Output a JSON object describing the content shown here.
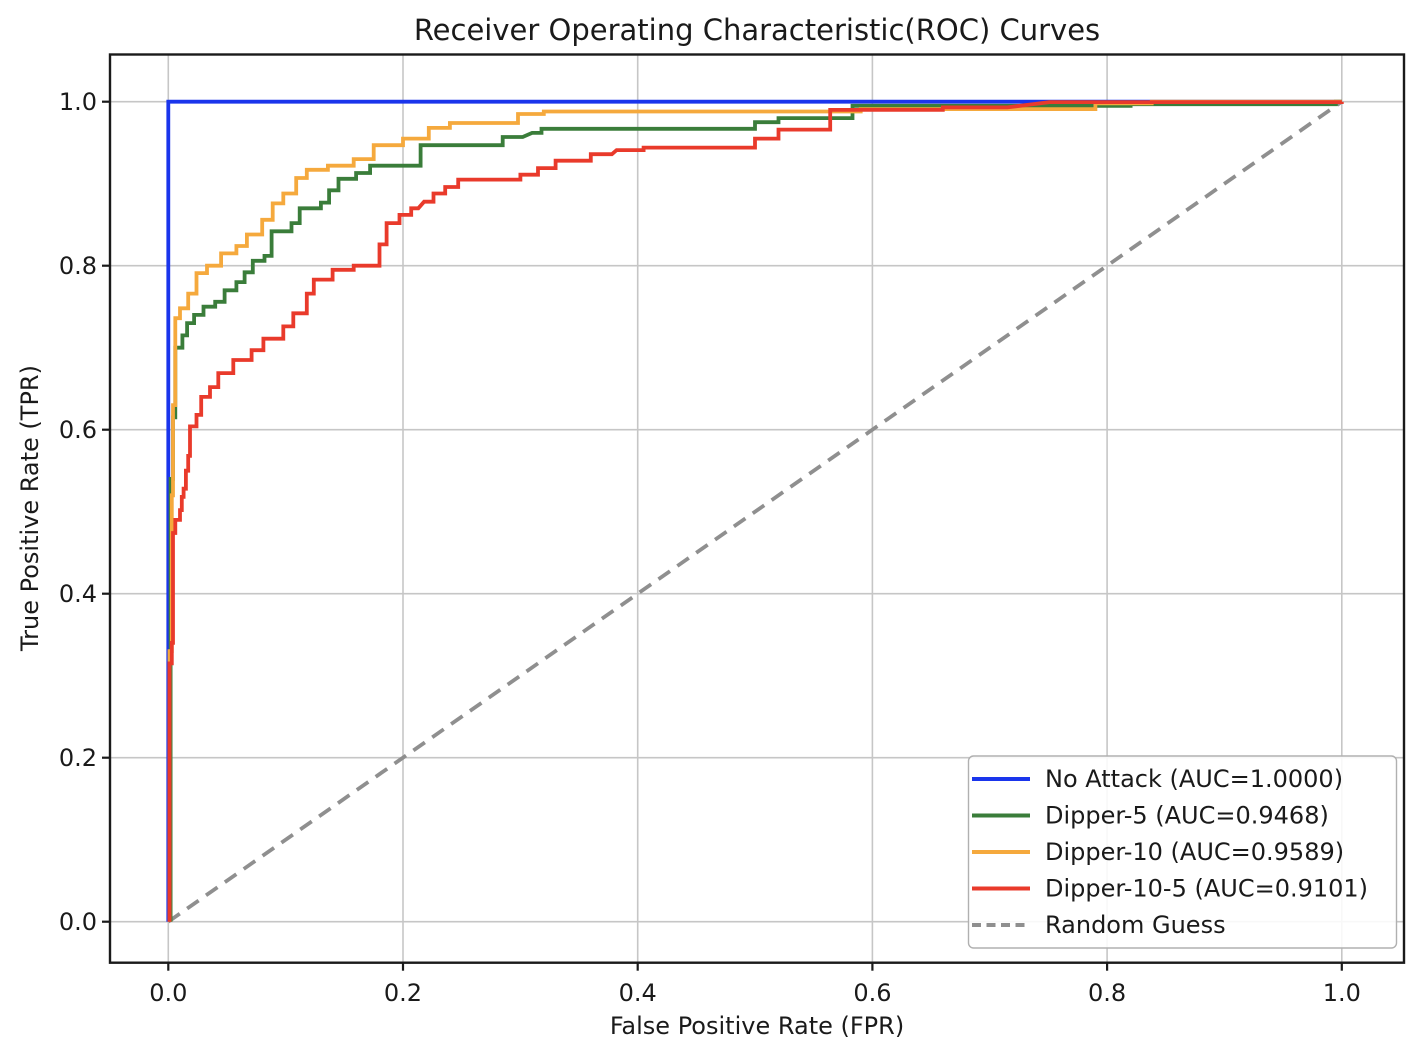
{
  "figure": {
    "background": "#ffffff",
    "text_color": "#1a1a1a"
  },
  "chart_data": {
    "type": "line",
    "title": "Receiver Operating Characteristic(ROC) Curves",
    "xlabel": "False Positive Rate (FPR)",
    "ylabel": "True Positive Rate (TPR)",
    "xlim": [
      -0.05,
      1.05
    ],
    "ylim": [
      -0.05,
      1.05
    ],
    "grid": true,
    "grid_color": "#c6c6c6",
    "spine_color": "#1a1a1a",
    "legend_position": "lower right",
    "xticks": {
      "values": [
        0.0,
        0.2,
        0.4,
        0.6,
        0.8,
        1.0
      ],
      "labels": [
        "0.0",
        "0.2",
        "0.4",
        "0.6",
        "0.8",
        "1.0"
      ]
    },
    "yticks": {
      "values": [
        0.0,
        0.2,
        0.4,
        0.6,
        0.8,
        1.0
      ],
      "labels": [
        "0.0",
        "0.2",
        "0.4",
        "0.6",
        "0.8",
        "1.0"
      ]
    },
    "series": [
      {
        "name": "No Attack (AUC=1.0000)",
        "auc": 1.0,
        "color": "#1a35ec",
        "line_style": "solid",
        "zorder": 2,
        "points": [
          [
            0,
            0
          ],
          [
            0,
            1
          ],
          [
            1,
            1
          ]
        ]
      },
      {
        "name": "Dipper-5 (AUC=0.9468)",
        "auc": 0.9468,
        "color": "#3a7d3a",
        "line_style": "solid",
        "zorder": 3,
        "points": [
          [
            0.002,
            0
          ],
          [
            0.002,
            0.54
          ],
          [
            0.004,
            0.54
          ],
          [
            0.004,
            0.615
          ],
          [
            0.006,
            0.615
          ],
          [
            0.006,
            0.7
          ],
          [
            0.012,
            0.7
          ],
          [
            0.012,
            0.715
          ],
          [
            0.016,
            0.715
          ],
          [
            0.016,
            0.73
          ],
          [
            0.022,
            0.73
          ],
          [
            0.022,
            0.74
          ],
          [
            0.03,
            0.74
          ],
          [
            0.03,
            0.75
          ],
          [
            0.04,
            0.75
          ],
          [
            0.04,
            0.756
          ],
          [
            0.048,
            0.756
          ],
          [
            0.048,
            0.77
          ],
          [
            0.058,
            0.77
          ],
          [
            0.058,
            0.78
          ],
          [
            0.065,
            0.78
          ],
          [
            0.065,
            0.792
          ],
          [
            0.072,
            0.792
          ],
          [
            0.072,
            0.806
          ],
          [
            0.082,
            0.806
          ],
          [
            0.082,
            0.812
          ],
          [
            0.088,
            0.812
          ],
          [
            0.088,
            0.842
          ],
          [
            0.105,
            0.842
          ],
          [
            0.105,
            0.852
          ],
          [
            0.112,
            0.852
          ],
          [
            0.112,
            0.87
          ],
          [
            0.13,
            0.87
          ],
          [
            0.13,
            0.877
          ],
          [
            0.137,
            0.877
          ],
          [
            0.137,
            0.892
          ],
          [
            0.145,
            0.892
          ],
          [
            0.145,
            0.906
          ],
          [
            0.16,
            0.906
          ],
          [
            0.16,
            0.913
          ],
          [
            0.172,
            0.913
          ],
          [
            0.172,
            0.922
          ],
          [
            0.215,
            0.922
          ],
          [
            0.215,
            0.947
          ],
          [
            0.285,
            0.947
          ],
          [
            0.285,
            0.957
          ],
          [
            0.302,
            0.957
          ],
          [
            0.31,
            0.962
          ],
          [
            0.318,
            0.962
          ],
          [
            0.318,
            0.967
          ],
          [
            0.5,
            0.967
          ],
          [
            0.5,
            0.975
          ],
          [
            0.52,
            0.975
          ],
          [
            0.52,
            0.98
          ],
          [
            0.583,
            0.98
          ],
          [
            0.583,
            0.995
          ],
          [
            0.82,
            0.995
          ],
          [
            0.82,
            0.997
          ],
          [
            0.995,
            0.997
          ],
          [
            0.995,
            1.0
          ],
          [
            1.0,
            1.0
          ]
        ]
      },
      {
        "name": "Dipper-10 (AUC=0.9589)",
        "auc": 0.9589,
        "color": "#f5a93d",
        "line_style": "solid",
        "zorder": 4,
        "points": [
          [
            0.001,
            0
          ],
          [
            0.001,
            0.33
          ],
          [
            0.003,
            0.33
          ],
          [
            0.003,
            0.52
          ],
          [
            0.004,
            0.52
          ],
          [
            0.004,
            0.63
          ],
          [
            0.006,
            0.63
          ],
          [
            0.006,
            0.736
          ],
          [
            0.01,
            0.736
          ],
          [
            0.01,
            0.748
          ],
          [
            0.017,
            0.748
          ],
          [
            0.017,
            0.766
          ],
          [
            0.024,
            0.766
          ],
          [
            0.024,
            0.791
          ],
          [
            0.033,
            0.791
          ],
          [
            0.033,
            0.8
          ],
          [
            0.045,
            0.8
          ],
          [
            0.045,
            0.815
          ],
          [
            0.058,
            0.815
          ],
          [
            0.058,
            0.824
          ],
          [
            0.067,
            0.824
          ],
          [
            0.067,
            0.838
          ],
          [
            0.08,
            0.838
          ],
          [
            0.08,
            0.856
          ],
          [
            0.089,
            0.856
          ],
          [
            0.089,
            0.876
          ],
          [
            0.098,
            0.876
          ],
          [
            0.098,
            0.888
          ],
          [
            0.109,
            0.888
          ],
          [
            0.109,
            0.907
          ],
          [
            0.118,
            0.907
          ],
          [
            0.118,
            0.917
          ],
          [
            0.136,
            0.917
          ],
          [
            0.136,
            0.922
          ],
          [
            0.158,
            0.922
          ],
          [
            0.158,
            0.93
          ],
          [
            0.175,
            0.93
          ],
          [
            0.175,
            0.947
          ],
          [
            0.2,
            0.947
          ],
          [
            0.2,
            0.955
          ],
          [
            0.222,
            0.955
          ],
          [
            0.222,
            0.968
          ],
          [
            0.24,
            0.968
          ],
          [
            0.24,
            0.974
          ],
          [
            0.298,
            0.974
          ],
          [
            0.298,
            0.985
          ],
          [
            0.32,
            0.985
          ],
          [
            0.32,
            0.988
          ],
          [
            0.59,
            0.988
          ],
          [
            0.59,
            0.991
          ],
          [
            0.79,
            0.991
          ],
          [
            0.79,
            0.998
          ],
          [
            0.838,
            0.998
          ],
          [
            0.838,
            1.0
          ],
          [
            1.0,
            1.0
          ]
        ]
      },
      {
        "name": "Dipper-10-5 (AUC=0.9101)",
        "auc": 0.9101,
        "color": "#e93a2b",
        "line_style": "solid",
        "zorder": 5,
        "points": [
          [
            0.001,
            0
          ],
          [
            0.001,
            0.315
          ],
          [
            0.003,
            0.315
          ],
          [
            0.003,
            0.34
          ],
          [
            0.004,
            0.34
          ],
          [
            0.004,
            0.474
          ],
          [
            0.006,
            0.474
          ],
          [
            0.006,
            0.49
          ],
          [
            0.01,
            0.49
          ],
          [
            0.01,
            0.502
          ],
          [
            0.0115,
            0.502
          ],
          [
            0.0115,
            0.518
          ],
          [
            0.013,
            0.518
          ],
          [
            0.013,
            0.528
          ],
          [
            0.015,
            0.528
          ],
          [
            0.015,
            0.55
          ],
          [
            0.017,
            0.55
          ],
          [
            0.017,
            0.568
          ],
          [
            0.0185,
            0.568
          ],
          [
            0.0185,
            0.604
          ],
          [
            0.024,
            0.604
          ],
          [
            0.024,
            0.618
          ],
          [
            0.028,
            0.618
          ],
          [
            0.028,
            0.64
          ],
          [
            0.0355,
            0.64
          ],
          [
            0.0355,
            0.652
          ],
          [
            0.0426,
            0.652
          ],
          [
            0.0426,
            0.669
          ],
          [
            0.0554,
            0.669
          ],
          [
            0.0554,
            0.685
          ],
          [
            0.071,
            0.685
          ],
          [
            0.071,
            0.697
          ],
          [
            0.081,
            0.697
          ],
          [
            0.081,
            0.711
          ],
          [
            0.098,
            0.711
          ],
          [
            0.098,
            0.726
          ],
          [
            0.1065,
            0.726
          ],
          [
            0.1065,
            0.742
          ],
          [
            0.118,
            0.742
          ],
          [
            0.118,
            0.766
          ],
          [
            0.124,
            0.766
          ],
          [
            0.124,
            0.783
          ],
          [
            0.14,
            0.783
          ],
          [
            0.14,
            0.795
          ],
          [
            0.158,
            0.795
          ],
          [
            0.158,
            0.8
          ],
          [
            0.18,
            0.8
          ],
          [
            0.18,
            0.826
          ],
          [
            0.186,
            0.826
          ],
          [
            0.186,
            0.852
          ],
          [
            0.197,
            0.852
          ],
          [
            0.197,
            0.862
          ],
          [
            0.207,
            0.862
          ],
          [
            0.207,
            0.87
          ],
          [
            0.213,
            0.87
          ],
          [
            0.218,
            0.878
          ],
          [
            0.226,
            0.878
          ],
          [
            0.226,
            0.888
          ],
          [
            0.236,
            0.888
          ],
          [
            0.236,
            0.896
          ],
          [
            0.247,
            0.896
          ],
          [
            0.247,
            0.905
          ],
          [
            0.3,
            0.905
          ],
          [
            0.3,
            0.911
          ],
          [
            0.315,
            0.911
          ],
          [
            0.315,
            0.919
          ],
          [
            0.33,
            0.919
          ],
          [
            0.33,
            0.928
          ],
          [
            0.36,
            0.928
          ],
          [
            0.36,
            0.936
          ],
          [
            0.378,
            0.936
          ],
          [
            0.382,
            0.941
          ],
          [
            0.405,
            0.941
          ],
          [
            0.405,
            0.944
          ],
          [
            0.5,
            0.944
          ],
          [
            0.5,
            0.955
          ],
          [
            0.52,
            0.955
          ],
          [
            0.52,
            0.966
          ],
          [
            0.564,
            0.966
          ],
          [
            0.564,
            0.99
          ],
          [
            0.66,
            0.99
          ],
          [
            0.66,
            0.993
          ],
          [
            0.715,
            0.993
          ],
          [
            0.751,
            0.9995
          ],
          [
            1.0,
            0.9995
          ],
          [
            1.0,
            1.0
          ]
        ]
      },
      {
        "name": "Random Guess",
        "color": "#8f8f8f",
        "line_style": "dashed",
        "zorder": 1,
        "points": [
          [
            0,
            0
          ],
          [
            1,
            1
          ]
        ]
      }
    ]
  }
}
